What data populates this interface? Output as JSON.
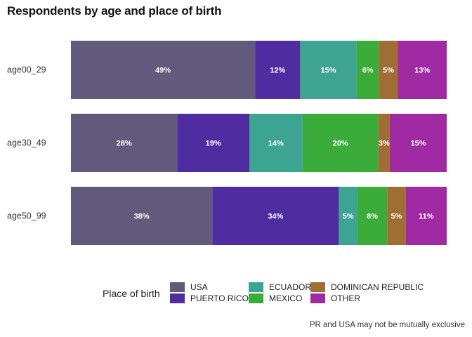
{
  "chart_data": {
    "type": "bar",
    "orientation": "horizontal",
    "stacked": true,
    "title": "Respondents by age and place of birth",
    "categories": [
      "age00_29",
      "age30_49",
      "age50_99"
    ],
    "series": [
      {
        "name": "USA",
        "color": "#625A7C",
        "values": [
          49,
          28,
          38
        ],
        "labels": [
          "49%",
          "28%",
          "38%"
        ]
      },
      {
        "name": "PUERTO RICO",
        "color": "#4F2CA0",
        "values": [
          12,
          19,
          34
        ],
        "labels": [
          "12%",
          "19%",
          "34%"
        ]
      },
      {
        "name": "ECUADOR",
        "color": "#3CA490",
        "values": [
          15,
          14,
          5
        ],
        "labels": [
          "15%",
          "14%",
          "5%"
        ]
      },
      {
        "name": "MEXICO",
        "color": "#3BAB3A",
        "values": [
          6,
          20,
          8
        ],
        "labels": [
          "6%",
          "20%",
          "8%"
        ]
      },
      {
        "name": "DOMINICAN REPUBLIC",
        "color": "#A06E34",
        "values": [
          5,
          3,
          5
        ],
        "labels": [
          "5%",
          "3%",
          "5%"
        ]
      },
      {
        "name": "OTHER",
        "color": "#A02AA2",
        "values": [
          13,
          15,
          11
        ],
        "labels": [
          "13%",
          "15%",
          "11%"
        ]
      }
    ],
    "legend_title": "Place of birth",
    "legend_position": "bottom",
    "caption": "PR and USA may not be mutually exclusive",
    "grid": false
  }
}
